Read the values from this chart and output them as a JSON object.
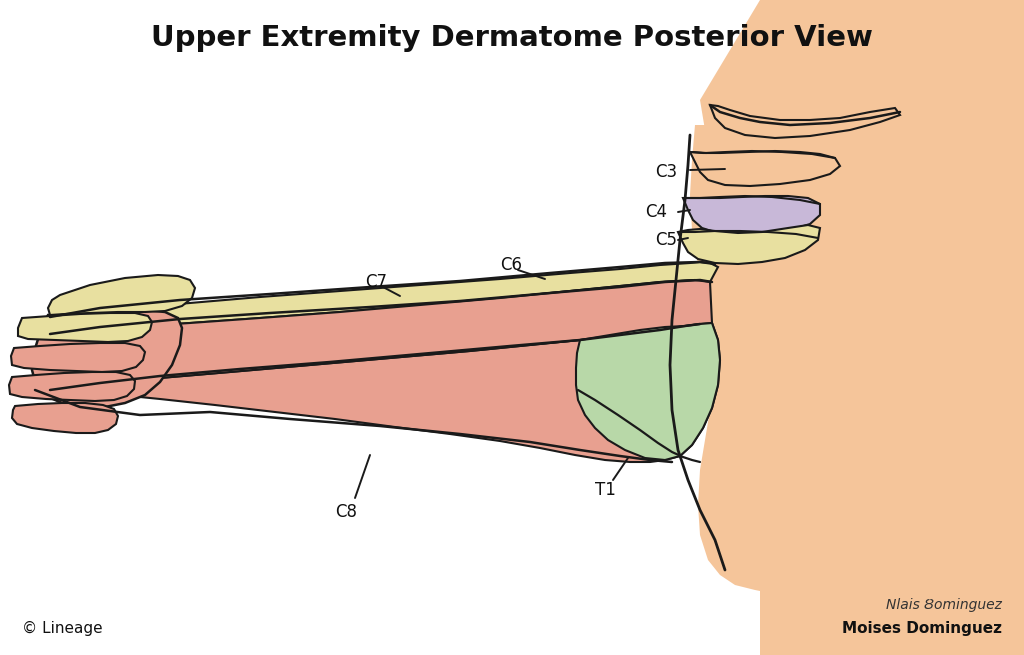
{
  "title": "Upper Extremity Dermatome Posterior View",
  "title_fontsize": 21,
  "title_fontweight": "bold",
  "bg_color": "#ffffff",
  "skin_color": "#f5c59a",
  "c4_color": "#c8b8d8",
  "yellow_color": "#e8e0a0",
  "c8_color": "#e8a090",
  "t1_color": "#b8d8a8",
  "outline_color": "#1a1a1a",
  "label_fontsize": 12,
  "copyright_text": "© Lineage",
  "author_text": "Moises Dominguez"
}
